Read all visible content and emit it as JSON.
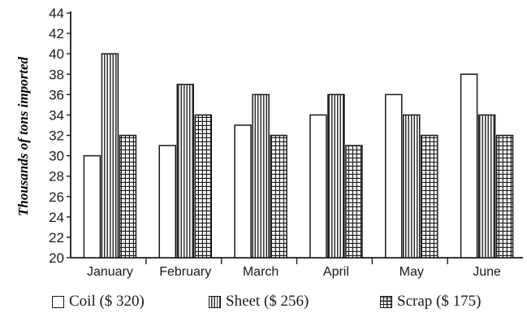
{
  "chart_data": {
    "type": "bar",
    "categories": [
      "January",
      "February",
      "March",
      "April",
      "May",
      "June"
    ],
    "series": [
      {
        "name": "Coil ($ 320)",
        "values": [
          30,
          31,
          33,
          34,
          36,
          38
        ]
      },
      {
        "name": "Sheet ($ 256)",
        "values": [
          40,
          37,
          36,
          36,
          34,
          34
        ]
      },
      {
        "name": "Scrap ($ 175)",
        "values": [
          32,
          34,
          32,
          31,
          32,
          32
        ]
      }
    ],
    "ylabel": "Thousands of tons imported",
    "xlabel": "",
    "ylim": [
      20,
      44
    ],
    "yticks": [
      20,
      22,
      24,
      26,
      28,
      30,
      32,
      34,
      36,
      38,
      40,
      42,
      44
    ],
    "grid": false,
    "legend_position": "bottom",
    "legend": [
      {
        "label": "Coil ($ 320)",
        "pattern": "plain"
      },
      {
        "label": "Sheet ($ 256)",
        "pattern": "vertical-lines"
      },
      {
        "label": "Scrap ($ 175)",
        "pattern": "grid"
      }
    ]
  }
}
